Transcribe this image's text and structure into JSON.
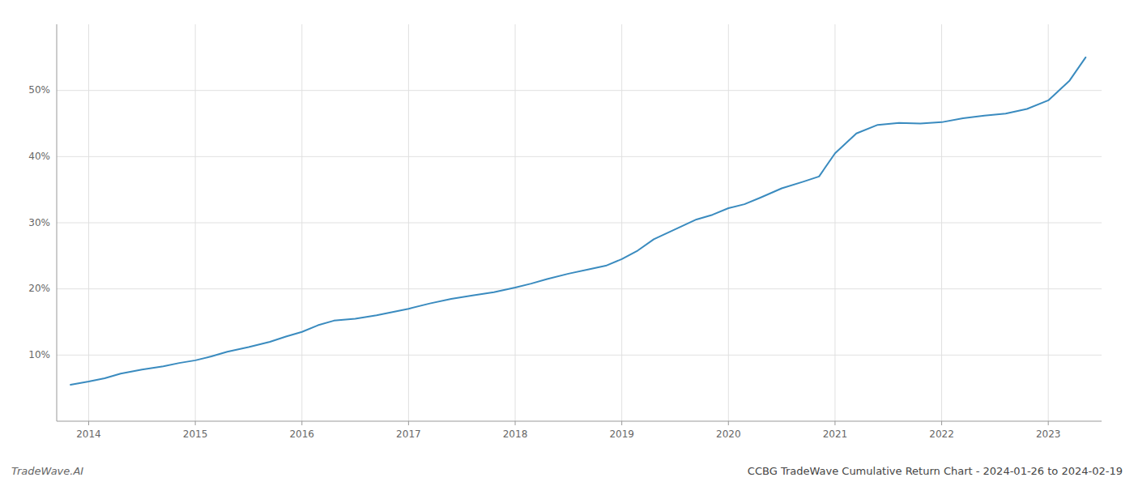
{
  "chart_data": {
    "type": "line",
    "title": "CCBG TradeWave Cumulative Return Chart - 2024-01-26 to 2024-02-19",
    "annotations": [
      "TradeWave.AI"
    ],
    "color": "#3a8bbf",
    "grid": true,
    "x": [
      2013.83,
      2014.0,
      2014.15,
      2014.3,
      2014.5,
      2014.7,
      2014.85,
      2015.0,
      2015.15,
      2015.3,
      2015.5,
      2015.7,
      2015.85,
      2016.0,
      2016.15,
      2016.3,
      2016.5,
      2016.7,
      2016.85,
      2017.0,
      2017.2,
      2017.4,
      2017.6,
      2017.8,
      2018.0,
      2018.15,
      2018.3,
      2018.5,
      2018.7,
      2018.85,
      2019.0,
      2019.15,
      2019.3,
      2019.5,
      2019.7,
      2019.85,
      2020.0,
      2020.15,
      2020.3,
      2020.5,
      2020.7,
      2020.85,
      2021.0,
      2021.2,
      2021.4,
      2021.6,
      2021.8,
      2022.0,
      2022.2,
      2022.4,
      2022.6,
      2022.8,
      2023.0,
      2023.2,
      2023.35
    ],
    "values": [
      5.5,
      6.0,
      6.5,
      7.2,
      7.8,
      8.3,
      8.8,
      9.2,
      9.8,
      10.5,
      11.2,
      12.0,
      12.8,
      13.5,
      14.5,
      15.2,
      15.5,
      16.0,
      16.5,
      17.0,
      17.8,
      18.5,
      19.0,
      19.5,
      20.2,
      20.8,
      21.5,
      22.3,
      23.0,
      23.5,
      24.5,
      25.8,
      27.5,
      29.0,
      30.5,
      31.2,
      32.2,
      32.8,
      33.8,
      35.2,
      36.2,
      37.0,
      40.5,
      43.5,
      44.8,
      45.1,
      45.0,
      45.2,
      45.8,
      46.2,
      46.5,
      47.2,
      48.5,
      51.5,
      55.0
    ],
    "xlim": [
      2013.7,
      2023.5
    ],
    "xticks": [
      2014,
      2015,
      2016,
      2017,
      2018,
      2019,
      2020,
      2021,
      2022,
      2023
    ],
    "ylim": [
      0,
      60
    ],
    "yticks": [
      {
        "value": 10,
        "label": "10%"
      },
      {
        "value": 20,
        "label": "20%"
      },
      {
        "value": 30,
        "label": "30%"
      },
      {
        "value": 40,
        "label": "40%"
      },
      {
        "value": 50,
        "label": "50%"
      }
    ]
  }
}
